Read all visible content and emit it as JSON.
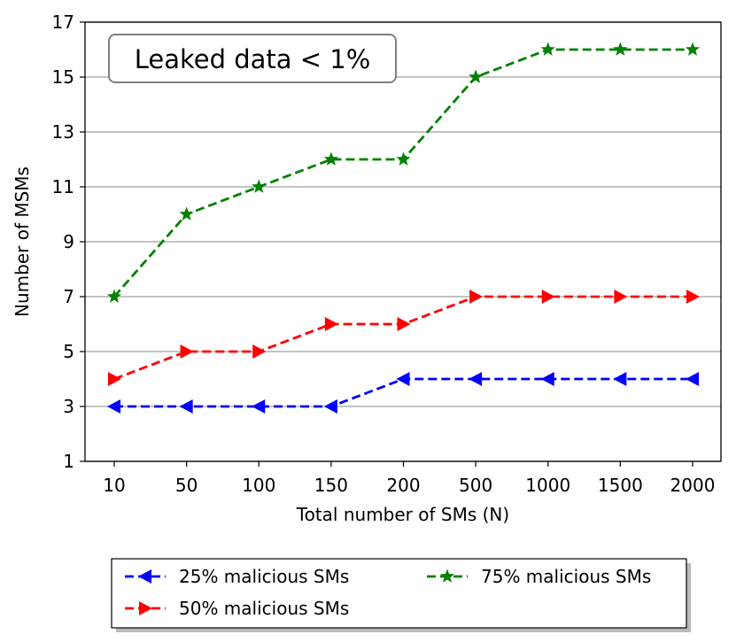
{
  "chart_data": {
    "type": "line",
    "title": "",
    "annotation": "Leaked data < 1%",
    "xlabel": "Total number of SMs (N)",
    "ylabel": "Number of MSMs",
    "categories": [
      "10",
      "50",
      "100",
      "150",
      "200",
      "500",
      "1000",
      "1500",
      "2000"
    ],
    "ylim": [
      1,
      17
    ],
    "yticks": [
      1,
      3,
      5,
      7,
      9,
      11,
      13,
      15,
      17
    ],
    "grid": "horizontal",
    "legend_position": "below",
    "series": [
      {
        "name": "25% malicious SMs",
        "values": [
          3,
          3,
          3,
          3,
          4,
          4,
          4,
          4,
          4
        ],
        "color": "#0000ff",
        "marker": "triangle-left"
      },
      {
        "name": "50% malicious SMs",
        "values": [
          4,
          5,
          5,
          6,
          6,
          7,
          7,
          7,
          7
        ],
        "color": "#ff0000",
        "marker": "triangle-right"
      },
      {
        "name": "75% malicious SMs",
        "values": [
          7,
          10,
          11,
          12,
          12,
          15,
          16,
          16,
          16
        ],
        "color": "#008000",
        "marker": "star"
      }
    ]
  }
}
